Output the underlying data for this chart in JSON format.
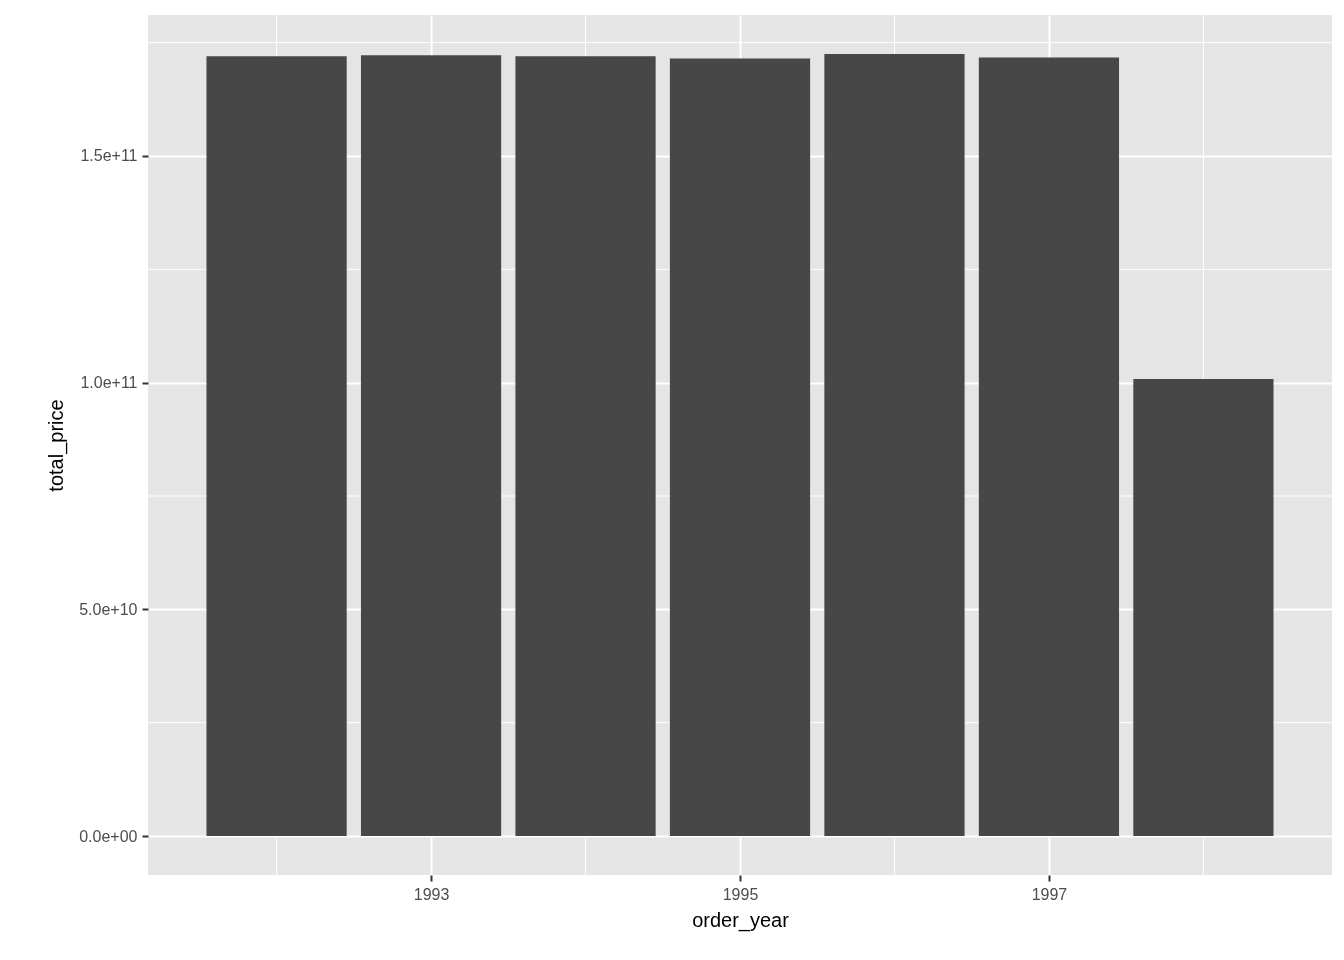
{
  "chart_data": {
    "type": "bar",
    "xlabel": "order_year",
    "ylabel": "total_price",
    "x": [
      1992,
      1993,
      1994,
      1995,
      1996,
      1997,
      1998
    ],
    "values": [
      172000000000,
      172200000000,
      172000000000,
      171500000000,
      172500000000,
      171700000000,
      100800000000
    ],
    "color": "#474747",
    "xlim": [
      1991.2,
      1998.8
    ],
    "xticks": [
      1993,
      1995,
      1997
    ],
    "ylim": [
      -8600000000,
      181100000000
    ],
    "yticks": [
      {
        "value": 0,
        "label": "0.0e+00"
      },
      {
        "value": 50000000000,
        "label": "5.0e+10"
      },
      {
        "value": 100000000000,
        "label": "1.0e+11"
      },
      {
        "value": 150000000000,
        "label": "1.5e+11"
      }
    ],
    "grid": true
  }
}
